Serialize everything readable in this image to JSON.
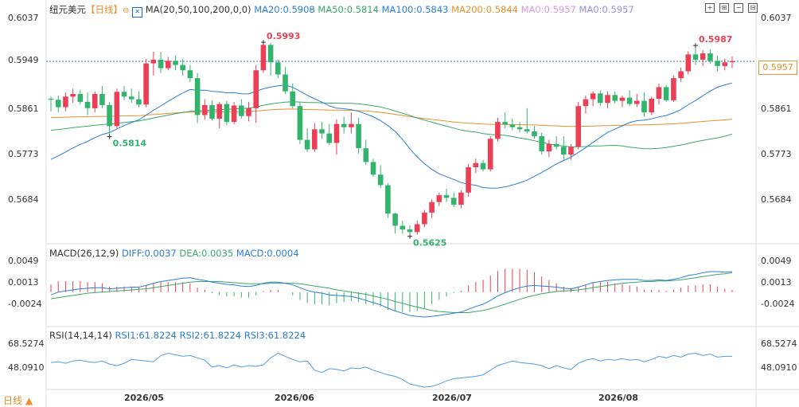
{
  "header": {
    "symbol": "纽元美元",
    "period": "【日线】",
    "ma_label": "MA(20,50,100,200,0,0)",
    "ma20": "MA20:0.5908",
    "ma50": "MA50:0.5814",
    "ma100": "MA100:0.5843",
    "ma200": "MA200:0.5844",
    "ma0a": "MA0:0.5957",
    "ma0b": "MA0:0.5957",
    "macd_label": "MACD(26,12,9)",
    "diff": "DIFF:0.0037",
    "dea": "DEA:0.0035",
    "macd": "MACD:0.0004",
    "rsi_label": "RSI(14,14,14)",
    "rsi1": "RSI1:61.8224",
    "rsi2": "RSI2:61.8224",
    "rsi3": "RSI3:61.8224",
    "footer": "日线 ▲",
    "last_price": "0.5957"
  },
  "colors": {
    "up": "#eb3f56",
    "down": "#33b46d",
    "ma20": "#2a7fd4",
    "ma50": "#3aa76d",
    "ma100": "#35b07a",
    "ma200": "#e8912d",
    "diff": "#2a7fd4",
    "dea": "#3aa76d",
    "rsi": "#4f9ee0"
  },
  "chart_data": [
    {
      "type": "candlestick",
      "title": "纽元美元 日线",
      "y_ticks": [
        "0.6037",
        "0.5949",
        "0.5861",
        "0.5773",
        "0.5684"
      ],
      "x_ticks": [
        "2026/05",
        "2026/06",
        "2026/07",
        "2026/08"
      ],
      "annotations": [
        {
          "label": "0.5993",
          "kind": "high"
        },
        {
          "label": "0.5814",
          "kind": "low"
        },
        {
          "label": "0.5625",
          "kind": "low"
        },
        {
          "label": "0.5987",
          "kind": "high"
        }
      ],
      "ylim": [
        0.562,
        0.604
      ],
      "last_price": 0.5957,
      "candles": [
        {
          "o": 0.5886,
          "h": 0.589,
          "l": 0.5862,
          "c": 0.5884
        },
        {
          "o": 0.5884,
          "h": 0.5892,
          "l": 0.586,
          "c": 0.587
        },
        {
          "o": 0.587,
          "h": 0.5898,
          "l": 0.5862,
          "c": 0.589
        },
        {
          "o": 0.589,
          "h": 0.5905,
          "l": 0.5878,
          "c": 0.5895
        },
        {
          "o": 0.5895,
          "h": 0.5903,
          "l": 0.5875,
          "c": 0.588
        },
        {
          "o": 0.588,
          "h": 0.5898,
          "l": 0.5855,
          "c": 0.5868
        },
        {
          "o": 0.5868,
          "h": 0.59,
          "l": 0.586,
          "c": 0.5895
        },
        {
          "o": 0.5895,
          "h": 0.591,
          "l": 0.5868,
          "c": 0.5874
        },
        {
          "o": 0.5874,
          "h": 0.588,
          "l": 0.5814,
          "c": 0.5834
        },
        {
          "o": 0.5834,
          "h": 0.5905,
          "l": 0.583,
          "c": 0.5899
        },
        {
          "o": 0.5899,
          "h": 0.591,
          "l": 0.5883,
          "c": 0.589
        },
        {
          "o": 0.589,
          "h": 0.5905,
          "l": 0.5878,
          "c": 0.5885
        },
        {
          "o": 0.5885,
          "h": 0.59,
          "l": 0.587,
          "c": 0.5875
        },
        {
          "o": 0.5875,
          "h": 0.5962,
          "l": 0.587,
          "c": 0.5953
        },
        {
          "o": 0.5953,
          "h": 0.5975,
          "l": 0.593,
          "c": 0.596
        },
        {
          "o": 0.596,
          "h": 0.5975,
          "l": 0.5935,
          "c": 0.5944
        },
        {
          "o": 0.5944,
          "h": 0.5965,
          "l": 0.594,
          "c": 0.5958
        },
        {
          "o": 0.5958,
          "h": 0.5968,
          "l": 0.594,
          "c": 0.595
        },
        {
          "o": 0.595,
          "h": 0.5962,
          "l": 0.593,
          "c": 0.594
        },
        {
          "o": 0.594,
          "h": 0.595,
          "l": 0.5918,
          "c": 0.5925
        },
        {
          "o": 0.5925,
          "h": 0.5935,
          "l": 0.584,
          "c": 0.5855
        },
        {
          "o": 0.5855,
          "h": 0.5885,
          "l": 0.5846,
          "c": 0.5874
        },
        {
          "o": 0.5874,
          "h": 0.5882,
          "l": 0.5845,
          "c": 0.5848
        },
        {
          "o": 0.5848,
          "h": 0.588,
          "l": 0.583,
          "c": 0.5876
        },
        {
          "o": 0.5876,
          "h": 0.5882,
          "l": 0.5836,
          "c": 0.5842
        },
        {
          "o": 0.5842,
          "h": 0.588,
          "l": 0.5838,
          "c": 0.5873
        },
        {
          "o": 0.5873,
          "h": 0.5885,
          "l": 0.5848,
          "c": 0.5853
        },
        {
          "o": 0.5853,
          "h": 0.588,
          "l": 0.5843,
          "c": 0.5868
        },
        {
          "o": 0.5868,
          "h": 0.595,
          "l": 0.584,
          "c": 0.594
        },
        {
          "o": 0.594,
          "h": 0.5993,
          "l": 0.5935,
          "c": 0.5988
        },
        {
          "o": 0.5988,
          "h": 0.5992,
          "l": 0.593,
          "c": 0.5955
        },
        {
          "o": 0.5955,
          "h": 0.596,
          "l": 0.5925,
          "c": 0.5932
        },
        {
          "o": 0.5932,
          "h": 0.5946,
          "l": 0.5895,
          "c": 0.59
        },
        {
          "o": 0.59,
          "h": 0.5915,
          "l": 0.5868,
          "c": 0.5872
        },
        {
          "o": 0.5872,
          "h": 0.588,
          "l": 0.58,
          "c": 0.5808
        },
        {
          "o": 0.5808,
          "h": 0.583,
          "l": 0.5785,
          "c": 0.579
        },
        {
          "o": 0.579,
          "h": 0.584,
          "l": 0.5785,
          "c": 0.5828
        },
        {
          "o": 0.5828,
          "h": 0.5842,
          "l": 0.581,
          "c": 0.582
        },
        {
          "o": 0.582,
          "h": 0.5838,
          "l": 0.5798,
          "c": 0.5802
        },
        {
          "o": 0.5802,
          "h": 0.5847,
          "l": 0.578,
          "c": 0.5838
        },
        {
          "o": 0.5838,
          "h": 0.5852,
          "l": 0.582,
          "c": 0.5832
        },
        {
          "o": 0.5832,
          "h": 0.586,
          "l": 0.582,
          "c": 0.5838
        },
        {
          "o": 0.5838,
          "h": 0.585,
          "l": 0.5782,
          "c": 0.5792
        },
        {
          "o": 0.5792,
          "h": 0.5808,
          "l": 0.576,
          "c": 0.5766
        },
        {
          "o": 0.5766,
          "h": 0.5772,
          "l": 0.5738,
          "c": 0.5742
        },
        {
          "o": 0.5742,
          "h": 0.576,
          "l": 0.5716,
          "c": 0.5722
        },
        {
          "o": 0.5722,
          "h": 0.5726,
          "l": 0.566,
          "c": 0.5668
        },
        {
          "o": 0.5668,
          "h": 0.567,
          "l": 0.563,
          "c": 0.5645
        },
        {
          "o": 0.5645,
          "h": 0.5655,
          "l": 0.563,
          "c": 0.5638
        },
        {
          "o": 0.5638,
          "h": 0.5646,
          "l": 0.5625,
          "c": 0.5633
        },
        {
          "o": 0.5633,
          "h": 0.5655,
          "l": 0.5628,
          "c": 0.5648
        },
        {
          "o": 0.5648,
          "h": 0.5675,
          "l": 0.5642,
          "c": 0.567
        },
        {
          "o": 0.567,
          "h": 0.5695,
          "l": 0.566,
          "c": 0.569
        },
        {
          "o": 0.569,
          "h": 0.5708,
          "l": 0.5682,
          "c": 0.5703
        },
        {
          "o": 0.5703,
          "h": 0.5715,
          "l": 0.569,
          "c": 0.5698
        },
        {
          "o": 0.5698,
          "h": 0.5708,
          "l": 0.568,
          "c": 0.5685
        },
        {
          "o": 0.5685,
          "h": 0.5712,
          "l": 0.5678,
          "c": 0.5708
        },
        {
          "o": 0.5708,
          "h": 0.5762,
          "l": 0.57,
          "c": 0.5756
        },
        {
          "o": 0.5756,
          "h": 0.5772,
          "l": 0.5745,
          "c": 0.5764
        },
        {
          "o": 0.5764,
          "h": 0.577,
          "l": 0.5748,
          "c": 0.5752
        },
        {
          "o": 0.5752,
          "h": 0.5815,
          "l": 0.5748,
          "c": 0.581
        },
        {
          "o": 0.581,
          "h": 0.585,
          "l": 0.5805,
          "c": 0.5842
        },
        {
          "o": 0.5842,
          "h": 0.586,
          "l": 0.583,
          "c": 0.5837
        },
        {
          "o": 0.5837,
          "h": 0.5848,
          "l": 0.5826,
          "c": 0.5832
        },
        {
          "o": 0.5832,
          "h": 0.5842,
          "l": 0.5822,
          "c": 0.5828
        },
        {
          "o": 0.5828,
          "h": 0.5868,
          "l": 0.582,
          "c": 0.5824
        },
        {
          "o": 0.5824,
          "h": 0.5834,
          "l": 0.581,
          "c": 0.5815
        },
        {
          "o": 0.5815,
          "h": 0.5822,
          "l": 0.578,
          "c": 0.5786
        },
        {
          "o": 0.5786,
          "h": 0.5808,
          "l": 0.5775,
          "c": 0.58
        },
        {
          "o": 0.58,
          "h": 0.5815,
          "l": 0.579,
          "c": 0.5795
        },
        {
          "o": 0.5795,
          "h": 0.5815,
          "l": 0.577,
          "c": 0.578
        },
        {
          "o": 0.578,
          "h": 0.58,
          "l": 0.577,
          "c": 0.5795
        },
        {
          "o": 0.5795,
          "h": 0.588,
          "l": 0.579,
          "c": 0.5872
        },
        {
          "o": 0.5872,
          "h": 0.5892,
          "l": 0.5858,
          "c": 0.5885
        },
        {
          "o": 0.5885,
          "h": 0.59,
          "l": 0.5872,
          "c": 0.5896
        },
        {
          "o": 0.5896,
          "h": 0.5902,
          "l": 0.5872,
          "c": 0.5878
        },
        {
          "o": 0.5878,
          "h": 0.59,
          "l": 0.5868,
          "c": 0.5893
        },
        {
          "o": 0.5893,
          "h": 0.59,
          "l": 0.5878,
          "c": 0.5882
        },
        {
          "o": 0.5882,
          "h": 0.5892,
          "l": 0.587,
          "c": 0.5888
        },
        {
          "o": 0.5888,
          "h": 0.5902,
          "l": 0.5872,
          "c": 0.5876
        },
        {
          "o": 0.5876,
          "h": 0.5895,
          "l": 0.587,
          "c": 0.5882
        },
        {
          "o": 0.5882,
          "h": 0.5898,
          "l": 0.5852,
          "c": 0.586
        },
        {
          "o": 0.586,
          "h": 0.589,
          "l": 0.5855,
          "c": 0.5886
        },
        {
          "o": 0.5886,
          "h": 0.5915,
          "l": 0.5875,
          "c": 0.5908
        },
        {
          "o": 0.5908,
          "h": 0.5912,
          "l": 0.588,
          "c": 0.5883
        },
        {
          "o": 0.5883,
          "h": 0.593,
          "l": 0.588,
          "c": 0.5925
        },
        {
          "o": 0.5925,
          "h": 0.5945,
          "l": 0.5918,
          "c": 0.5938
        },
        {
          "o": 0.5938,
          "h": 0.5976,
          "l": 0.5932,
          "c": 0.597
        },
        {
          "o": 0.597,
          "h": 0.5987,
          "l": 0.595,
          "c": 0.596
        },
        {
          "o": 0.596,
          "h": 0.5978,
          "l": 0.5948,
          "c": 0.5972
        },
        {
          "o": 0.5972,
          "h": 0.598,
          "l": 0.5952,
          "c": 0.5958
        },
        {
          "o": 0.5958,
          "h": 0.5968,
          "l": 0.5938,
          "c": 0.5948
        },
        {
          "o": 0.5948,
          "h": 0.5962,
          "l": 0.594,
          "c": 0.5955
        },
        {
          "o": 0.5955,
          "h": 0.5966,
          "l": 0.5944,
          "c": 0.5957
        }
      ]
    },
    {
      "type": "line",
      "title": "MACD(26,12,9)",
      "y_ticks": [
        "0.0049",
        "0.0013",
        "-0.0024"
      ],
      "ylim": [
        -0.0055,
        0.006
      ],
      "series": [
        {
          "name": "DIFF",
          "values": [
            -0.0005,
            0.0,
            0.0002,
            0.0004,
            0.0006,
            0.0007,
            0.0008,
            0.0008,
            0.0006,
            0.0007,
            0.0008,
            0.0009,
            0.0009,
            0.0012,
            0.0016,
            0.0019,
            0.0021,
            0.0023,
            0.0025,
            0.0026,
            0.0023,
            0.0021,
            0.0018,
            0.0016,
            0.0014,
            0.0013,
            0.0011,
            0.001,
            0.0012,
            0.0016,
            0.0018,
            0.0018,
            0.0016,
            0.0013,
            0.0008,
            0.0003,
            0.0,
            -0.0002,
            -0.0005,
            -0.0006,
            -0.0007,
            -0.0008,
            -0.0011,
            -0.0015,
            -0.0019,
            -0.0023,
            -0.0029,
            -0.0034,
            -0.0038,
            -0.0042,
            -0.0044,
            -0.0045,
            -0.0044,
            -0.0042,
            -0.004,
            -0.0038,
            -0.0036,
            -0.0031,
            -0.0026,
            -0.0022,
            -0.0015,
            -0.0007,
            -0.0001,
            0.0004,
            0.0008,
            0.0011,
            0.0012,
            0.0011,
            0.001,
            0.0009,
            0.0007,
            0.0006,
            0.0009,
            0.0013,
            0.0017,
            0.0019,
            0.0021,
            0.0022,
            0.0023,
            0.0023,
            0.0023,
            0.0021,
            0.0021,
            0.0022,
            0.0021,
            0.0023,
            0.0026,
            0.003,
            0.0032,
            0.0035,
            0.0037,
            0.0037,
            0.0036,
            0.0037
          ]
        },
        {
          "name": "DEA",
          "values": [
            -0.0012,
            -0.001,
            -0.0008,
            -0.0006,
            -0.0004,
            -0.0002,
            -0.0001,
            0.0,
            0.0001,
            0.0002,
            0.0003,
            0.0004,
            0.0005,
            0.0006,
            0.0008,
            0.001,
            0.0012,
            0.0014,
            0.0016,
            0.0018,
            0.0019,
            0.0019,
            0.0019,
            0.0019,
            0.0018,
            0.0017,
            0.0016,
            0.0015,
            0.0015,
            0.0015,
            0.0016,
            0.0016,
            0.0016,
            0.0016,
            0.0015,
            0.0013,
            0.0011,
            0.0009,
            0.0007,
            0.0004,
            0.0002,
            0.0,
            -0.0002,
            -0.0004,
            -0.0007,
            -0.001,
            -0.0013,
            -0.0017,
            -0.002,
            -0.0024,
            -0.0027,
            -0.003,
            -0.0033,
            -0.0035,
            -0.0036,
            -0.0037,
            -0.0037,
            -0.0037,
            -0.0035,
            -0.0033,
            -0.003,
            -0.0026,
            -0.0022,
            -0.0017,
            -0.0013,
            -0.0009,
            -0.0006,
            -0.0003,
            -0.0001,
            0.0001,
            0.0002,
            0.0003,
            0.0004,
            0.0006,
            0.0008,
            0.001,
            0.0012,
            0.0014,
            0.0016,
            0.0017,
            0.0018,
            0.0019,
            0.0019,
            0.002,
            0.002,
            0.0021,
            0.0022,
            0.0024,
            0.0026,
            0.0028,
            0.003,
            0.0032,
            0.0033,
            0.0035
          ]
        }
      ]
    },
    {
      "type": "line",
      "title": "RSI(14,14,14)",
      "y_ticks": [
        "68.5274",
        "48.0910"
      ],
      "ylim": [
        20,
        80
      ],
      "series": [
        {
          "name": "RSI1",
          "values": [
            54,
            55,
            53,
            56,
            57,
            55,
            54,
            56,
            52,
            50,
            53,
            58,
            57,
            56,
            55,
            63,
            66,
            64,
            62,
            63,
            60,
            57,
            48,
            50,
            47,
            51,
            48,
            50,
            49,
            51,
            60,
            66,
            62,
            58,
            55,
            56,
            44,
            41,
            46,
            45,
            43,
            47,
            46,
            48,
            44,
            41,
            38,
            36,
            32,
            26,
            24,
            22,
            23,
            26,
            30,
            33,
            34,
            35,
            36,
            38,
            44,
            50,
            53,
            56,
            54,
            53,
            52,
            50,
            46,
            50,
            47,
            45,
            53,
            57,
            59,
            56,
            58,
            57,
            59,
            57,
            58,
            55,
            58,
            62,
            60,
            63,
            61,
            65,
            66,
            63,
            65,
            61,
            62,
            62
          ]
        }
      ]
    }
  ]
}
